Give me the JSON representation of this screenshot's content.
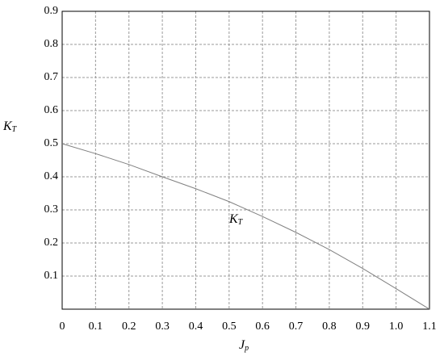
{
  "chart_data": {
    "type": "line",
    "x_label": "J",
    "x_label_sub": "p",
    "y_label": "K",
    "y_label_sub": "T",
    "annotation": "K",
    "annotation_sub": "T",
    "x": [
      0,
      0.1,
      0.2,
      0.3,
      0.4,
      0.5,
      0.6,
      0.7,
      0.8,
      0.9,
      1.0,
      1.1
    ],
    "series": [
      {
        "color": "#808080",
        "values": [
          0.5,
          0.47,
          0.437,
          0.4,
          0.364,
          0.325,
          0.28,
          0.232,
          0.18,
          0.123,
          0.062,
          0.0
        ]
      }
    ],
    "xlim": [
      0,
      1.1
    ],
    "xticks": [
      0,
      0.1,
      0.2,
      0.3,
      0.4,
      0.5,
      0.6,
      0.7,
      0.8,
      0.9,
      {
        "value": 1.0,
        "label": "1.0"
      },
      1.1
    ],
    "ylim": [
      0,
      0.9
    ],
    "yticks": [
      0.1,
      0.2,
      0.3,
      0.4,
      0.5,
      0.6,
      0.7,
      0.8,
      0.9
    ],
    "grid": true
  }
}
